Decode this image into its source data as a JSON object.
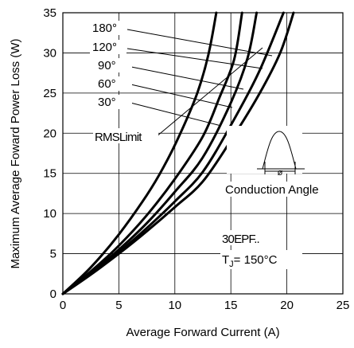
{
  "chart_data": {
    "type": "line",
    "title": "",
    "xlabel": "Average Forward Current (A)",
    "ylabel": "Maximum Average Foward Power Loss (W)",
    "xlim": [
      0,
      25
    ],
    "ylim": [
      0,
      35
    ],
    "x_ticks": [
      0,
      5,
      10,
      15,
      20,
      25
    ],
    "y_ticks": [
      0,
      5,
      10,
      15,
      20,
      25,
      30,
      35
    ],
    "grid": true,
    "series": [
      {
        "name": "180°",
        "x": [
          0,
          2.5,
          5,
          7.5,
          10,
          12.5,
          15,
          17.5,
          19.4,
          20.6
        ],
        "y": [
          0,
          2.4,
          5.0,
          7.8,
          10.8,
          14.0,
          19.1,
          24.8,
          30.0,
          35.0
        ]
      },
      {
        "name": "120°",
        "x": [
          0,
          2.5,
          5,
          7.5,
          10,
          12.5,
          15,
          17.5,
          19.7
        ],
        "y": [
          0,
          2.5,
          5.2,
          8.2,
          11.5,
          15.2,
          21.0,
          27.6,
          35.0
        ]
      },
      {
        "name": "90°",
        "x": [
          0,
          2.5,
          5,
          7.5,
          10,
          12.5,
          15,
          16.5,
          17.3
        ],
        "y": [
          0,
          2.6,
          5.5,
          8.8,
          12.7,
          17.0,
          23.8,
          29.4,
          35.0
        ]
      },
      {
        "name": "60°",
        "x": [
          0,
          2.5,
          5,
          7.5,
          10,
          12.5,
          14,
          15.3,
          16.0
        ],
        "y": [
          0,
          2.8,
          6.0,
          9.8,
          14.3,
          19.6,
          24.5,
          29.2,
          35.0
        ]
      },
      {
        "name": "30°",
        "x": [
          0,
          2.5,
          5,
          7.5,
          9,
          10.5,
          12,
          13.0,
          13.7
        ],
        "y": [
          0,
          3.3,
          7.4,
          12.3,
          15.8,
          20.0,
          25.0,
          29.8,
          35.0
        ]
      }
    ],
    "curve_labels": [
      "180°",
      "120°",
      "90°",
      "60°",
      "30°"
    ],
    "rms_limit_label": "RMSLimit",
    "conduction_angle_label": "Conduction Angle",
    "conduction_angle_symbol": "ø",
    "device_label": "30EPF..",
    "tj_label": "T",
    "tj_subscript": "J",
    "tj_value": "= 150°C",
    "colors": {
      "curve": "#000000",
      "grid": "#000000",
      "background": "#ffffff"
    }
  }
}
